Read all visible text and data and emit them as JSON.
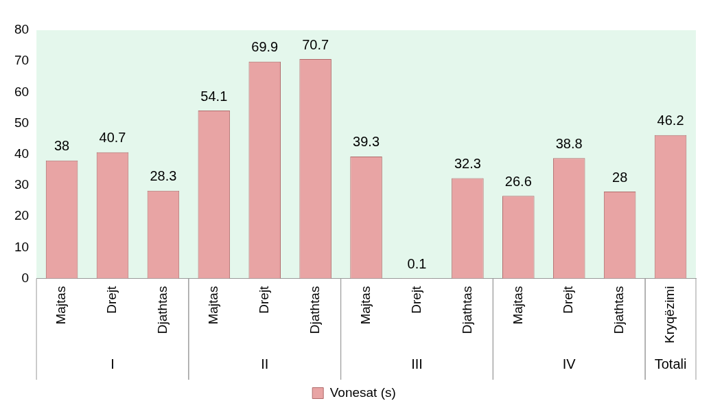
{
  "chart_data": {
    "type": "bar",
    "categories": [
      "Majtas",
      "Drejt",
      "Djathtas",
      "Majtas",
      "Drejt",
      "Djathtas",
      "Majtas",
      "Drejt",
      "Djathtas",
      "Majtas",
      "Drejt",
      "Djathtas",
      "Kryqëzimi"
    ],
    "series": [
      {
        "name": "Vonesat (s)",
        "color": "#e8a4a4",
        "values": [
          38,
          40.7,
          28.3,
          54.1,
          69.9,
          70.7,
          39.3,
          0.1,
          32.3,
          26.6,
          38.8,
          28,
          46.2
        ]
      }
    ],
    "ylim": [
      0,
      80
    ],
    "yticks": [
      0,
      10,
      20,
      30,
      40,
      50,
      60,
      70,
      80
    ],
    "data_labels": true,
    "legend": "bottom",
    "grid": false,
    "annotations": [
      "I",
      "II",
      "III",
      "IV",
      "Totali"
    ]
  }
}
